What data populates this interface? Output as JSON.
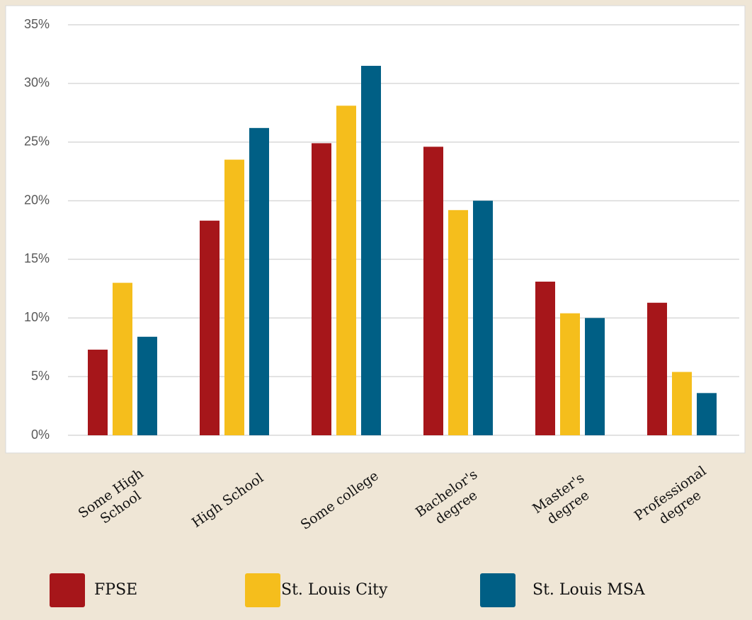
{
  "chart_data": {
    "type": "bar",
    "categories": [
      [
        "Some High",
        "School"
      ],
      [
        "High School"
      ],
      [
        "Some college"
      ],
      [
        "Bachelor's",
        "degree"
      ],
      [
        "Master's",
        "degree"
      ],
      [
        "Professional",
        "degree"
      ]
    ],
    "series": [
      {
        "name": "FPSE",
        "color": "#a6161a",
        "values": [
          7.3,
          18.3,
          24.9,
          24.6,
          13.1,
          11.3
        ]
      },
      {
        "name": "St. Louis City",
        "color": "#f5be1c",
        "values": [
          13.0,
          23.5,
          28.1,
          19.2,
          10.4,
          5.4
        ]
      },
      {
        "name": "St. Louis MSA",
        "color": "#005f85",
        "values": [
          8.4,
          26.2,
          31.5,
          20.0,
          10.0,
          3.6
        ]
      }
    ],
    "ylim": [
      0,
      35
    ],
    "yticks": [
      {
        "value": 0,
        "label": "0%"
      },
      {
        "value": 5,
        "label": "5%"
      },
      {
        "value": 10,
        "label": "10%"
      },
      {
        "value": 15,
        "label": "15%"
      },
      {
        "value": 20,
        "label": "20%"
      },
      {
        "value": 25,
        "label": "25%"
      },
      {
        "value": 30,
        "label": "30%"
      },
      {
        "value": 35,
        "label": "35%"
      }
    ],
    "grid": true,
    "legend": "bottom"
  }
}
